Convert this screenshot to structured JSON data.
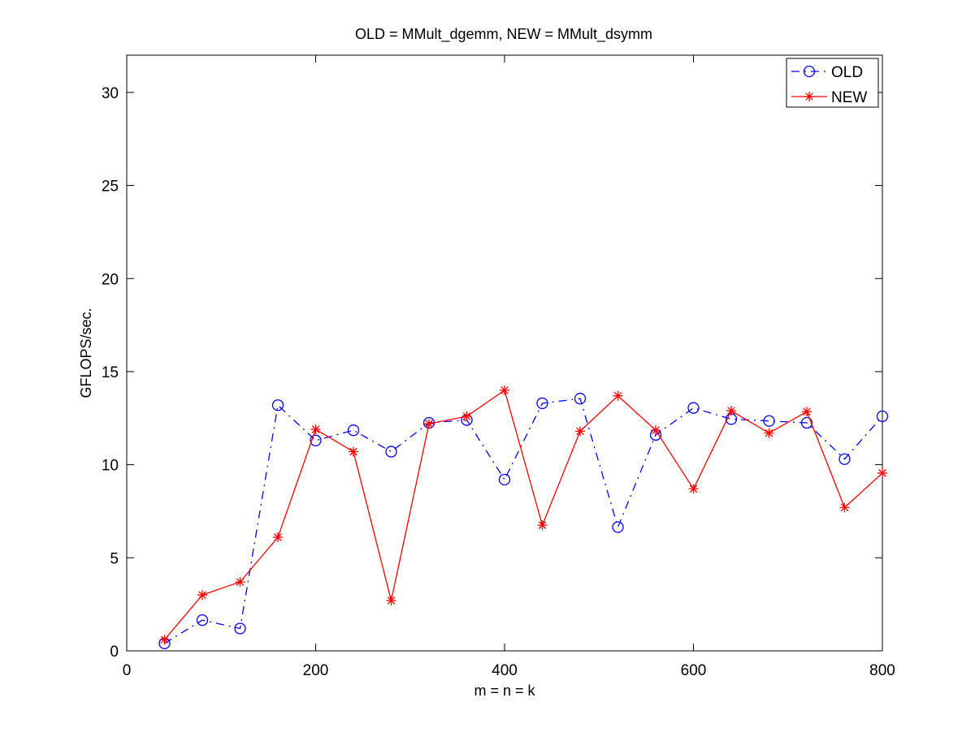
{
  "chart_data": {
    "type": "line",
    "title": "OLD = MMult_dgemm, NEW = MMult_dsymm",
    "xlabel": "m = n = k",
    "ylabel": "GFLOPS/sec.",
    "xlim": [
      0,
      800
    ],
    "ylim": [
      0,
      32
    ],
    "xticks": [
      0,
      200,
      400,
      600,
      800
    ],
    "yticks": [
      0,
      5,
      10,
      15,
      20,
      25,
      30
    ],
    "x": [
      40,
      80,
      120,
      160,
      200,
      240,
      280,
      320,
      360,
      400,
      440,
      480,
      520,
      560,
      600,
      640,
      680,
      720,
      760,
      800
    ],
    "series": [
      {
        "name": "OLD",
        "color": "#0000ff",
        "line_style": "dash-dot",
        "marker": "circle",
        "values": [
          0.4,
          1.65,
          1.2,
          13.2,
          11.3,
          11.85,
          10.7,
          12.25,
          12.4,
          9.2,
          13.3,
          13.55,
          6.65,
          11.6,
          13.05,
          12.45,
          12.35,
          12.25,
          10.3,
          12.6
        ]
      },
      {
        "name": "NEW",
        "color": "#ff0000",
        "line_style": "solid",
        "marker": "asterisk",
        "values": [
          0.6,
          3.0,
          3.7,
          6.1,
          11.9,
          10.7,
          2.7,
          12.2,
          12.6,
          14.0,
          6.75,
          11.8,
          13.7,
          11.85,
          8.7,
          12.9,
          11.7,
          12.85,
          7.7,
          9.55
        ]
      }
    ],
    "legend_position": "top-right",
    "grid": false
  }
}
